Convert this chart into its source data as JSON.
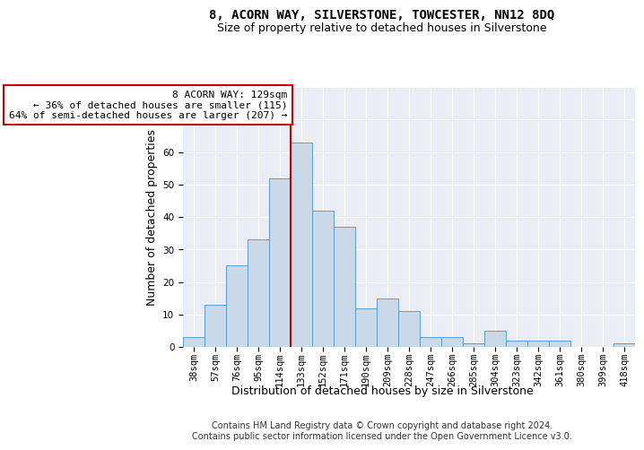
{
  "title": "8, ACORN WAY, SILVERSTONE, TOWCESTER, NN12 8DQ",
  "subtitle": "Size of property relative to detached houses in Silverstone",
  "xlabel": "Distribution of detached houses by size in Silverstone",
  "ylabel": "Number of detached properties",
  "bar_labels": [
    "38sqm",
    "57sqm",
    "76sqm",
    "95sqm",
    "114sqm",
    "133sqm",
    "152sqm",
    "171sqm",
    "190sqm",
    "209sqm",
    "228sqm",
    "247sqm",
    "266sqm",
    "285sqm",
    "304sqm",
    "323sqm",
    "342sqm",
    "361sqm",
    "380sqm",
    "399sqm",
    "418sqm"
  ],
  "bar_values": [
    3,
    13,
    25,
    33,
    52,
    63,
    42,
    37,
    12,
    15,
    11,
    3,
    3,
    1,
    5,
    2,
    2,
    2,
    0,
    0,
    1
  ],
  "bar_color": "#c9d9e8",
  "bar_edge_color": "#5b9bd5",
  "vline_color": "#cc0000",
  "vline_bar_index": 5,
  "annotation_line1": "8 ACORN WAY: 129sqm",
  "annotation_line2": "← 36% of detached houses are smaller (115)",
  "annotation_line3": "64% of semi-detached houses are larger (207) →",
  "annotation_box_color": "#ffffff",
  "annotation_box_edge": "#cc0000",
  "ylim": [
    0,
    80
  ],
  "yticks": [
    0,
    10,
    20,
    30,
    40,
    50,
    60,
    70,
    80
  ],
  "footer1": "Contains HM Land Registry data © Crown copyright and database right 2024.",
  "footer2": "Contains public sector information licensed under the Open Government Licence v3.0.",
  "bg_color": "#eaeef4",
  "title_fontsize": 10,
  "subtitle_fontsize": 9,
  "tick_fontsize": 7.5,
  "label_fontsize": 9,
  "annotation_fontsize": 8,
  "footer_fontsize": 7
}
